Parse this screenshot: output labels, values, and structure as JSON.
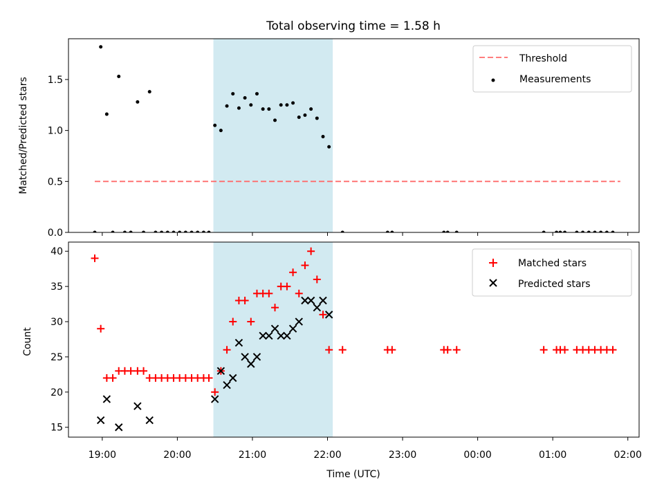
{
  "title": "Total observing time = 1.58 h",
  "colors": {
    "shade": "#add8e6",
    "threshold": "#ff6b6b",
    "matched": "#ff0000",
    "predicted": "#000000",
    "measurement": "#000000"
  },
  "x_axis": {
    "label": "Time (UTC)",
    "unit": "hours since 19:00 UTC (ticks labeled HH:MM)",
    "range": [
      -0.45,
      7.15
    ],
    "ticks": [
      0,
      1,
      2,
      3,
      4,
      5,
      6,
      7
    ],
    "tick_labels": [
      "19:00",
      "20:00",
      "21:00",
      "22:00",
      "23:00",
      "00:00",
      "01:00",
      "02:00"
    ]
  },
  "shaded_interval": [
    1.48,
    3.07
  ],
  "chart_data": [
    {
      "type": "scatter",
      "panel": "top",
      "ylabel": "Matched/Predicted stars",
      "ylim": [
        0,
        1.9
      ],
      "yticks": [
        0.0,
        0.5,
        1.0,
        1.5
      ],
      "ytick_labels": [
        "0.0",
        "0.5",
        "1.0",
        "1.5"
      ],
      "legend": {
        "placement": "top-right",
        "entries": [
          "Threshold",
          "Measurements"
        ]
      },
      "threshold": {
        "name": "Threshold",
        "y": 0.5,
        "x": [
          -0.1,
          6.9
        ]
      },
      "series": [
        {
          "name": "Measurements",
          "points": [
            [
              -0.1,
              0
            ],
            [
              -0.02,
              1.82
            ],
            [
              0.06,
              1.16
            ],
            [
              0.14,
              0
            ],
            [
              0.22,
              1.53
            ],
            [
              0.3,
              0
            ],
            [
              0.38,
              0
            ],
            [
              0.47,
              1.28
            ],
            [
              0.55,
              0
            ],
            [
              0.63,
              1.38
            ],
            [
              0.71,
              0
            ],
            [
              0.79,
              0
            ],
            [
              0.87,
              0
            ],
            [
              0.95,
              0
            ],
            [
              1.03,
              0
            ],
            [
              1.11,
              0
            ],
            [
              1.19,
              0
            ],
            [
              1.27,
              0
            ],
            [
              1.35,
              0
            ],
            [
              1.42,
              0
            ],
            [
              1.5,
              1.05
            ],
            [
              1.58,
              1.0
            ],
            [
              1.66,
              1.24
            ],
            [
              1.74,
              1.36
            ],
            [
              1.82,
              1.22
            ],
            [
              1.9,
              1.32
            ],
            [
              1.98,
              1.25
            ],
            [
              2.06,
              1.36
            ],
            [
              2.14,
              1.21
            ],
            [
              2.22,
              1.21
            ],
            [
              2.3,
              1.1
            ],
            [
              2.38,
              1.25
            ],
            [
              2.46,
              1.25
            ],
            [
              2.54,
              1.27
            ],
            [
              2.62,
              1.13
            ],
            [
              2.7,
              1.15
            ],
            [
              2.78,
              1.21
            ],
            [
              2.86,
              1.12
            ],
            [
              2.94,
              0.94
            ],
            [
              3.02,
              0.84
            ],
            [
              3.2,
              0
            ],
            [
              3.8,
              0
            ],
            [
              3.86,
              0
            ],
            [
              4.55,
              0
            ],
            [
              4.6,
              0
            ],
            [
              4.72,
              0
            ],
            [
              5.88,
              0
            ],
            [
              6.05,
              0
            ],
            [
              6.1,
              0
            ],
            [
              6.16,
              0
            ],
            [
              6.32,
              0
            ],
            [
              6.4,
              0
            ],
            [
              6.48,
              0
            ],
            [
              6.56,
              0
            ],
            [
              6.64,
              0
            ],
            [
              6.72,
              0
            ],
            [
              6.8,
              0
            ]
          ]
        }
      ]
    },
    {
      "type": "scatter",
      "panel": "bottom",
      "ylabel": "Count",
      "ylim": [
        13.6,
        41.3
      ],
      "yticks": [
        15,
        20,
        25,
        30,
        35,
        40
      ],
      "ytick_labels": [
        "15",
        "20",
        "25",
        "30",
        "35",
        "40"
      ],
      "legend": {
        "placement": "top-right",
        "entries": [
          "Matched stars",
          "Predicted stars"
        ]
      },
      "series": [
        {
          "name": "Matched stars",
          "marker": "plus",
          "points": [
            [
              -0.1,
              39
            ],
            [
              -0.02,
              29
            ],
            [
              0.06,
              22
            ],
            [
              0.14,
              22
            ],
            [
              0.22,
              23
            ],
            [
              0.3,
              23
            ],
            [
              0.38,
              23
            ],
            [
              0.47,
              23
            ],
            [
              0.55,
              23
            ],
            [
              0.63,
              22
            ],
            [
              0.71,
              22
            ],
            [
              0.79,
              22
            ],
            [
              0.87,
              22
            ],
            [
              0.95,
              22
            ],
            [
              1.03,
              22
            ],
            [
              1.11,
              22
            ],
            [
              1.19,
              22
            ],
            [
              1.27,
              22
            ],
            [
              1.35,
              22
            ],
            [
              1.42,
              22
            ],
            [
              1.5,
              20
            ],
            [
              1.58,
              23
            ],
            [
              1.66,
              26
            ],
            [
              1.74,
              30
            ],
            [
              1.82,
              33
            ],
            [
              1.9,
              33
            ],
            [
              1.98,
              30
            ],
            [
              2.06,
              34
            ],
            [
              2.14,
              34
            ],
            [
              2.22,
              34
            ],
            [
              2.3,
              32
            ],
            [
              2.38,
              35
            ],
            [
              2.46,
              35
            ],
            [
              2.54,
              37
            ],
            [
              2.62,
              34
            ],
            [
              2.7,
              38
            ],
            [
              2.78,
              40
            ],
            [
              2.86,
              36
            ],
            [
              2.94,
              31
            ],
            [
              3.02,
              26
            ],
            [
              3.2,
              26
            ],
            [
              3.8,
              26
            ],
            [
              3.86,
              26
            ],
            [
              4.55,
              26
            ],
            [
              4.6,
              26
            ],
            [
              4.72,
              26
            ],
            [
              5.88,
              26
            ],
            [
              6.05,
              26
            ],
            [
              6.1,
              26
            ],
            [
              6.16,
              26
            ],
            [
              6.32,
              26
            ],
            [
              6.4,
              26
            ],
            [
              6.48,
              26
            ],
            [
              6.56,
              26
            ],
            [
              6.64,
              26
            ],
            [
              6.72,
              26
            ],
            [
              6.8,
              26
            ]
          ]
        },
        {
          "name": "Predicted stars",
          "marker": "x",
          "points": [
            [
              -0.02,
              16
            ],
            [
              0.06,
              19
            ],
            [
              0.22,
              15
            ],
            [
              0.47,
              18
            ],
            [
              0.63,
              16
            ],
            [
              1.5,
              19
            ],
            [
              1.58,
              23
            ],
            [
              1.66,
              21
            ],
            [
              1.74,
              22
            ],
            [
              1.82,
              27
            ],
            [
              1.9,
              25
            ],
            [
              1.98,
              24
            ],
            [
              2.06,
              25
            ],
            [
              2.14,
              28
            ],
            [
              2.22,
              28
            ],
            [
              2.3,
              29
            ],
            [
              2.38,
              28
            ],
            [
              2.46,
              28
            ],
            [
              2.54,
              29
            ],
            [
              2.62,
              30
            ],
            [
              2.7,
              33
            ],
            [
              2.78,
              33
            ],
            [
              2.86,
              32
            ],
            [
              2.94,
              33
            ],
            [
              3.02,
              31
            ]
          ]
        }
      ]
    }
  ]
}
